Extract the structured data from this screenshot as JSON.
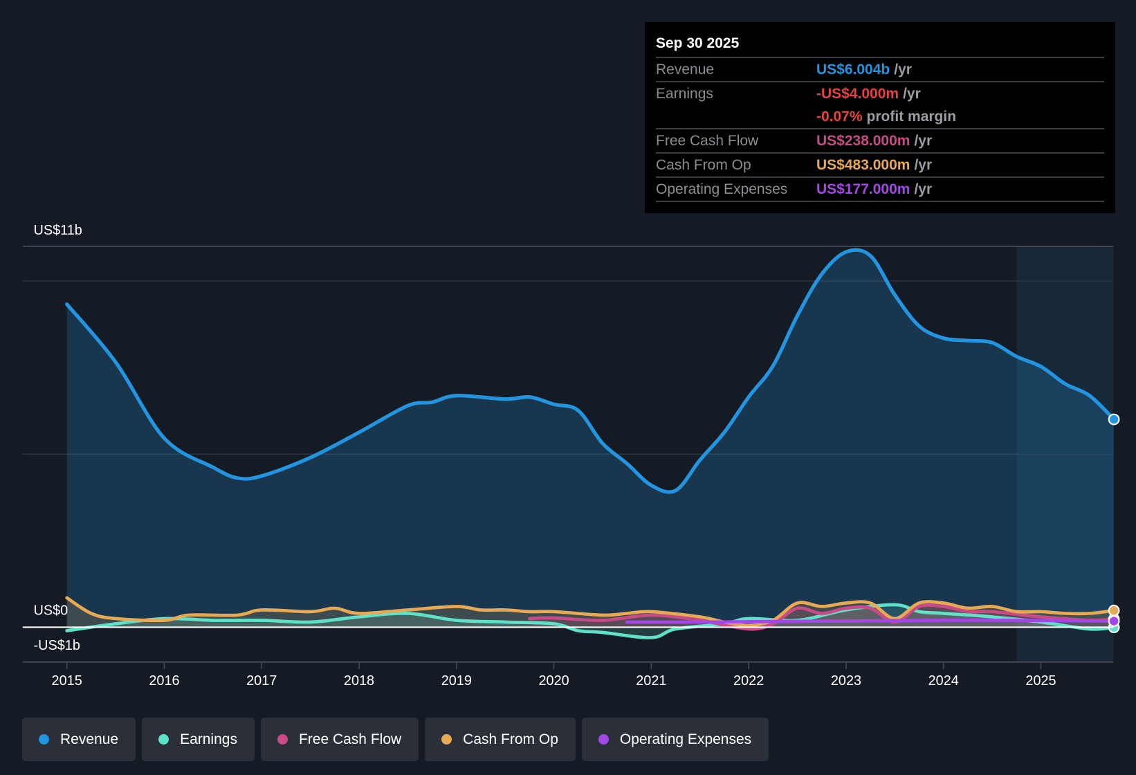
{
  "tooltip": {
    "date": "Sep 30 2025",
    "rows": [
      {
        "label": "Revenue",
        "value": "US$6.004b",
        "unit": "/yr",
        "color": "#2394df"
      },
      {
        "label": "Earnings",
        "value": "-US$4.000m",
        "unit": "/yr",
        "color": "#e84142"
      },
      {
        "label": "",
        "value": "-0.07%",
        "unit": "profit margin",
        "color": "#e84142"
      },
      {
        "label": "Free Cash Flow",
        "value": "US$238.000m",
        "unit": "/yr",
        "color": "#c84a86"
      },
      {
        "label": "Cash From Op",
        "value": "US$483.000m",
        "unit": "/yr",
        "color": "#e8a955"
      },
      {
        "label": "Operating Expenses",
        "value": "US$177.000m",
        "unit": "/yr",
        "color": "#a347e8"
      }
    ]
  },
  "chart_data": {
    "type": "line",
    "y_tick_labels": [
      "US$11b",
      "US$0",
      "-US$1b"
    ],
    "ylim": [
      -1,
      11
    ],
    "xlim": [
      2014.55,
      2025.75
    ],
    "x_tick_labels": [
      "2015",
      "2016",
      "2017",
      "2018",
      "2019",
      "2020",
      "2021",
      "2022",
      "2023",
      "2024",
      "2025"
    ],
    "forecast_shade_start": 2024.75,
    "series": [
      {
        "name": "Revenue",
        "color": "#2394df",
        "area": true,
        "x": [
          2015,
          2015.5,
          2016,
          2016.5,
          2016.75,
          2017,
          2017.5,
          2018,
          2018.5,
          2018.75,
          2019,
          2019.5,
          2019.75,
          2020,
          2020.25,
          2020.5,
          2020.75,
          2021,
          2021.25,
          2021.5,
          2021.75,
          2022,
          2022.25,
          2022.5,
          2022.75,
          2023,
          2023.25,
          2023.5,
          2023.75,
          2024,
          2024.25,
          2024.5,
          2024.75,
          2025,
          2025.25,
          2025.5,
          2025.75
        ],
        "values": [
          9.33,
          7.66,
          5.46,
          4.62,
          4.31,
          4.37,
          4.9,
          5.63,
          6.4,
          6.5,
          6.69,
          6.59,
          6.65,
          6.44,
          6.26,
          5.31,
          4.73,
          4.1,
          3.95,
          4.83,
          5.63,
          6.65,
          7.55,
          9.0,
          10.2,
          10.84,
          10.73,
          9.6,
          8.7,
          8.35,
          8.28,
          8.22,
          7.82,
          7.53,
          7.03,
          6.69,
          6.004
        ]
      },
      {
        "name": "Earnings",
        "color": "#5fe0c8",
        "area": true,
        "x": [
          2015,
          2015.5,
          2016,
          2016.5,
          2017,
          2017.5,
          2018,
          2018.5,
          2019,
          2019.5,
          2020,
          2020.25,
          2020.5,
          2021,
          2021.25,
          2021.75,
          2022,
          2022.5,
          2023,
          2023.5,
          2023.75,
          2024,
          2024.5,
          2025,
          2025.5,
          2025.75
        ],
        "values": [
          -0.1,
          0.1,
          0.25,
          0.2,
          0.2,
          0.15,
          0.3,
          0.4,
          0.2,
          0.15,
          0.1,
          -0.1,
          -0.15,
          -0.3,
          -0.05,
          0.1,
          0.25,
          0.2,
          0.5,
          0.65,
          0.45,
          0.4,
          0.3,
          0.15,
          -0.05,
          -0.004
        ]
      },
      {
        "name": "Free Cash Flow",
        "color": "#c84a86",
        "area": true,
        "x": [
          2019.75,
          2020,
          2020.5,
          2021,
          2021.5,
          2022,
          2022.25,
          2022.5,
          2022.75,
          2023,
          2023.25,
          2023.5,
          2023.75,
          2024,
          2024.25,
          2024.5,
          2025,
          2025.5,
          2025.75
        ],
        "values": [
          0.25,
          0.27,
          0.2,
          0.35,
          0.2,
          -0.05,
          0.1,
          0.55,
          0.4,
          0.55,
          0.55,
          0.15,
          0.6,
          0.6,
          0.45,
          0.45,
          0.3,
          0.2,
          0.238
        ]
      },
      {
        "name": "Cash From Op",
        "color": "#e8a955",
        "area": true,
        "x": [
          2015,
          2015.25,
          2015.5,
          2016,
          2016.25,
          2016.75,
          2017,
          2017.5,
          2017.75,
          2018,
          2018.5,
          2019,
          2019.25,
          2019.5,
          2019.75,
          2020,
          2020.5,
          2020.75,
          2021,
          2021.5,
          2021.75,
          2022,
          2022.25,
          2022.5,
          2022.75,
          2023,
          2023.25,
          2023.5,
          2023.75,
          2024,
          2024.25,
          2024.5,
          2024.75,
          2025,
          2025.25,
          2025.5,
          2025.75
        ],
        "values": [
          0.85,
          0.4,
          0.25,
          0.2,
          0.35,
          0.35,
          0.5,
          0.45,
          0.55,
          0.4,
          0.5,
          0.6,
          0.5,
          0.5,
          0.45,
          0.45,
          0.35,
          0.4,
          0.45,
          0.3,
          0.15,
          0.05,
          0.2,
          0.7,
          0.6,
          0.7,
          0.7,
          0.25,
          0.7,
          0.7,
          0.55,
          0.6,
          0.45,
          0.45,
          0.4,
          0.4,
          0.483
        ]
      },
      {
        "name": "Operating Expenses",
        "color": "#a347e8",
        "area": false,
        "x": [
          2020.75,
          2021.5,
          2022,
          2023,
          2024,
          2024.75,
          2025.75
        ],
        "values": [
          0.15,
          0.15,
          0.16,
          0.18,
          0.2,
          0.2,
          0.177
        ]
      }
    ]
  }
}
